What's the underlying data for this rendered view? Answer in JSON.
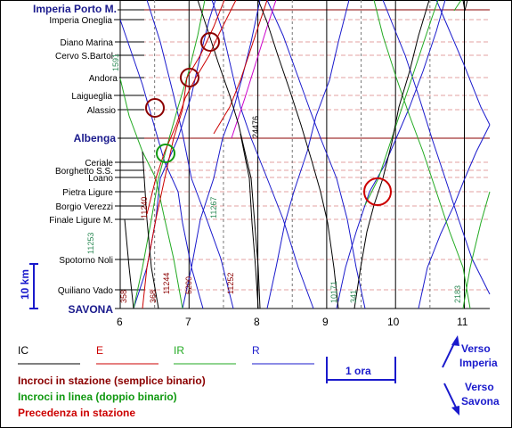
{
  "stations": [
    {
      "name": "Imperia Porto M.",
      "major": true
    },
    {
      "name": "Imperia Oneglia",
      "major": false
    },
    {
      "name": "Diano Marina",
      "major": false
    },
    {
      "name": "Cervo S.Bartol",
      "major": false
    },
    {
      "name": "Andora",
      "major": false
    },
    {
      "name": "Laigueglia",
      "major": false
    },
    {
      "name": "Alassio",
      "major": false
    },
    {
      "name": "Albenga",
      "major": true
    },
    {
      "name": "Ceriale",
      "major": false
    },
    {
      "name": "Borghetto S.S.",
      "major": false
    },
    {
      "name": "Loano",
      "major": false
    },
    {
      "name": "Pietra Ligure",
      "major": false
    },
    {
      "name": "Borgio Verezzi",
      "major": false
    },
    {
      "name": "Finale Ligure M.",
      "major": false
    },
    {
      "name": "Spotorno Noli",
      "major": false
    },
    {
      "name": "Quiliano Vado",
      "major": false
    },
    {
      "name": "SAVONA",
      "major": true
    }
  ],
  "hours": [
    "6",
    "7",
    "8",
    "9",
    "10",
    "11"
  ],
  "train_numbers": [
    {
      "label": "1591",
      "color": "#2e8b57"
    },
    {
      "label": "24476",
      "color": "#000000"
    },
    {
      "label": "11240",
      "color": "#8b0000"
    },
    {
      "label": "11267",
      "color": "#2e8b57"
    },
    {
      "label": "11253",
      "color": "#2e8b57"
    },
    {
      "label": "11252",
      "color": "#8b0000"
    },
    {
      "label": "11244",
      "color": "#8b0000"
    },
    {
      "label": "5200",
      "color": "#8b0000"
    },
    {
      "label": "10171",
      "color": "#2e8b57"
    },
    {
      "label": "341",
      "color": "#2e8b57"
    },
    {
      "label": "2183",
      "color": "#2e8b57"
    },
    {
      "label": "368",
      "color": "#8b0000"
    },
    {
      "label": "358",
      "color": "#8b0000"
    }
  ],
  "scale": {
    "distance": "10 km",
    "time": "1 ora"
  },
  "legend": [
    {
      "label": "IC",
      "color": "#000000"
    },
    {
      "label": "E",
      "color": "#cc0000"
    },
    {
      "label": "IR",
      "color": "#22aa22"
    },
    {
      "label": "R",
      "color": "#1a1acc"
    }
  ],
  "notes": [
    {
      "text": "Incroci in stazione (semplice binario)",
      "color": "#8b0000"
    },
    {
      "text": "Incroci in linea (doppio binario)",
      "color": "#119911"
    },
    {
      "text": "Precedenza in stazione",
      "color": "#cc0000"
    }
  ],
  "directions": {
    "up": "Verso Imperia",
    "down": "Verso Savona"
  }
}
